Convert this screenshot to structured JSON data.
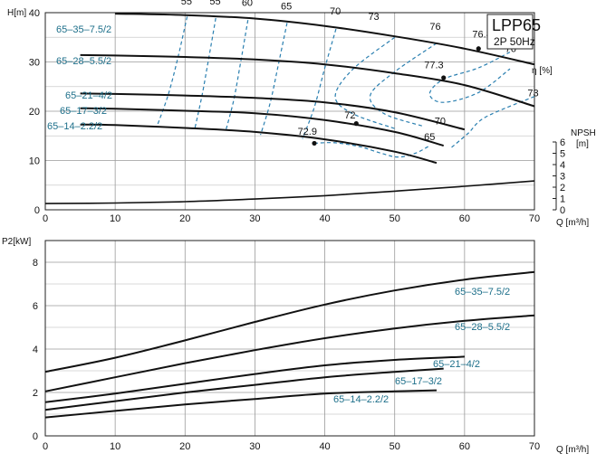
{
  "chart_data": [
    {
      "type": "line",
      "title": "LPP65",
      "subtitle": "2P  50Hz",
      "xlabel": "Q [m³/h]",
      "ylabel": "H[m]",
      "y2label": "NPSH [m]",
      "efficiency_unit": "η [%]",
      "xlim": [
        0,
        70
      ],
      "ylim": [
        0,
        40
      ],
      "x_ticks": [
        "0",
        "10",
        "20",
        "30",
        "40",
        "50",
        "60",
        "70"
      ],
      "y_ticks": [
        "0",
        "10",
        "20",
        "30",
        "40"
      ],
      "y2lim": [
        0,
        6
      ],
      "y2_ticks": [
        "0",
        "1",
        "2",
        "3",
        "4",
        "5",
        "6"
      ],
      "grid": true,
      "series": [
        {
          "name": "65–35–7.5/2",
          "x": [
            10,
            20,
            30,
            40,
            50,
            60,
            70
          ],
          "y": [
            39.8,
            39.5,
            38.8,
            37.3,
            35.2,
            32.7,
            29.5
          ]
        },
        {
          "name": "65–28–5.5/2",
          "x": [
            5,
            10,
            20,
            30,
            40,
            50,
            60,
            70
          ],
          "y": [
            31.4,
            31.3,
            31.0,
            30.5,
            29.5,
            27.7,
            25.3,
            21.0
          ]
        },
        {
          "name": "65–21–4/2",
          "x": [
            5,
            10,
            20,
            30,
            40,
            50,
            60
          ],
          "y": [
            23.6,
            23.5,
            23.2,
            22.7,
            21.8,
            19.8,
            16.3
          ]
        },
        {
          "name": "65–17–3/2",
          "x": [
            5,
            10,
            20,
            30,
            40,
            50,
            57
          ],
          "y": [
            20.6,
            20.5,
            20.1,
            19.6,
            18.2,
            15.8,
            13.0
          ]
        },
        {
          "name": "65–14–2.2/2",
          "x": [
            5,
            10,
            20,
            30,
            40,
            50,
            56
          ],
          "y": [
            17.3,
            17.2,
            16.6,
            15.8,
            14.3,
            11.8,
            9.5
          ]
        }
      ],
      "npsh_curve": {
        "x": [
          0,
          10,
          20,
          30,
          40,
          50,
          60,
          70
        ],
        "y": [
          0.55,
          0.6,
          0.72,
          0.95,
          1.25,
          1.65,
          2.08,
          2.55
        ]
      },
      "efficiency_labels": [
        {
          "text": "55",
          "x": 20.2,
          "y": 41.7
        },
        {
          "text": "55",
          "x": 24.3,
          "y": 41.7
        },
        {
          "text": "60",
          "x": 28.9,
          "y": 41.4
        },
        {
          "text": "65",
          "x": 34.5,
          "y": 40.6
        },
        {
          "text": "70",
          "x": 41.5,
          "y": 39.6
        },
        {
          "text": "73",
          "x": 47.0,
          "y": 38.5
        },
        {
          "text": "76",
          "x": 55.8,
          "y": 36.5
        },
        {
          "text": "76.8",
          "x": 62.5,
          "y": 35.0
        },
        {
          "text": "76",
          "x": 66.6,
          "y": 32.0
        },
        {
          "text": "77.3",
          "x": 55.6,
          "y": 28.7
        },
        {
          "text": "73",
          "x": 69.8,
          "y": 23.0
        },
        {
          "text": "72",
          "x": 43.6,
          "y": 18.5
        },
        {
          "text": "70",
          "x": 56.5,
          "y": 17.3
        },
        {
          "text": "72.9",
          "x": 37.5,
          "y": 15.2
        },
        {
          "text": "65",
          "x": 55.0,
          "y": 14.1
        }
      ],
      "efficiency_isolines": [
        {
          "x": [
            20.3,
            19.0,
            17.6,
            16.0
          ],
          "y": [
            39.2,
            31.0,
            23.4,
            17.0
          ]
        },
        {
          "x": [
            24.4,
            23.4,
            22.4,
            21.4
          ],
          "y": [
            38.9,
            30.8,
            23.0,
            16.5
          ]
        },
        {
          "x": [
            29.0,
            28.0,
            27.0,
            25.8
          ],
          "y": [
            38.5,
            30.3,
            22.5,
            15.9
          ]
        },
        {
          "x": [
            34.6,
            33.4,
            32.2,
            30.8
          ],
          "y": [
            37.9,
            29.8,
            21.8,
            15.2
          ]
        },
        {
          "x": [
            41.6,
            40.0,
            38.5,
            36.8
          ],
          "y": [
            36.7,
            28.8,
            20.8,
            14.4
          ]
        },
        {
          "x": [
            50.0,
            44.0,
            41.5,
            44.0,
            50.0
          ],
          "y": [
            35.0,
            28.5,
            23.0,
            19.5,
            16.5
          ]
        },
        {
          "x": [
            56.0,
            50.0,
            46.5,
            48.5,
            54.0
          ],
          "y": [
            33.8,
            28.0,
            23.2,
            19.5,
            17.0
          ]
        },
        {
          "x": [
            66.5,
            62.0,
            57.0,
            55.0,
            57.0,
            62.0,
            66.5
          ],
          "y": [
            32.0,
            28.8,
            26.5,
            23.5,
            21.8,
            23.8,
            28.6
          ]
        },
        {
          "x": [
            70.0,
            63.0,
            60.5,
            58.0
          ],
          "y": [
            23.0,
            18.8,
            15.5,
            12.5
          ]
        },
        {
          "x": [
            38.5,
            41.5,
            45.0,
            48.0,
            50.5,
            53.0,
            55.0
          ],
          "y": [
            13.5,
            13.6,
            12.8,
            11.5,
            10.7,
            11.5,
            13.0
          ]
        }
      ],
      "efficiency_points": [
        {
          "x": 62,
          "y": 32.7
        },
        {
          "x": 57,
          "y": 26.8
        },
        {
          "x": 44.5,
          "y": 17.5
        },
        {
          "x": 38.5,
          "y": 13.5
        }
      ]
    },
    {
      "type": "line",
      "xlabel": "Q [m³/h]",
      "ylabel": "P2[kW]",
      "xlim": [
        0,
        70
      ],
      "ylim": [
        0,
        9
      ],
      "x_ticks": [
        "0",
        "10",
        "20",
        "30",
        "40",
        "50",
        "60",
        "70"
      ],
      "y_ticks": [
        "0",
        "2",
        "4",
        "6",
        "8"
      ],
      "grid": true,
      "series": [
        {
          "name": "65–35–7.5/2",
          "x": [
            0,
            10,
            20,
            30,
            40,
            50,
            60,
            70
          ],
          "y": [
            2.95,
            3.6,
            4.4,
            5.25,
            6.05,
            6.7,
            7.2,
            7.55
          ]
        },
        {
          "name": "65–28–5.5/2",
          "x": [
            0,
            10,
            20,
            30,
            40,
            50,
            60,
            70
          ],
          "y": [
            2.05,
            2.7,
            3.35,
            3.95,
            4.5,
            4.95,
            5.3,
            5.55
          ]
        },
        {
          "name": "65–21–4/2",
          "x": [
            0,
            10,
            20,
            30,
            40,
            50,
            60
          ],
          "y": [
            1.55,
            1.95,
            2.4,
            2.85,
            3.25,
            3.5,
            3.65
          ]
        },
        {
          "name": "65–17–3/2",
          "x": [
            0,
            10,
            20,
            30,
            40,
            50,
            57
          ],
          "y": [
            1.2,
            1.6,
            2.0,
            2.35,
            2.7,
            2.95,
            3.1
          ]
        },
        {
          "name": "65–14–2.2/2",
          "x": [
            0,
            10,
            20,
            30,
            40,
            50,
            56
          ],
          "y": [
            0.85,
            1.15,
            1.45,
            1.7,
            1.95,
            2.05,
            2.1
          ]
        }
      ]
    }
  ]
}
